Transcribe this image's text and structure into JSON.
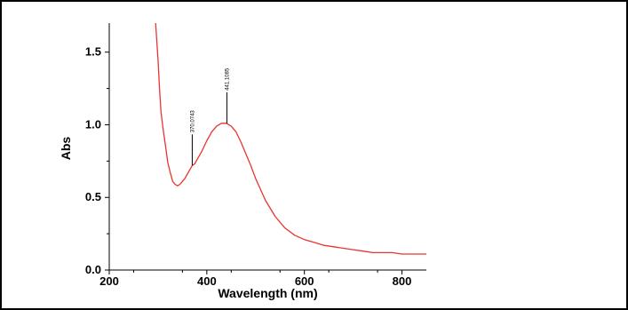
{
  "chart_data": {
    "type": "line",
    "title": "",
    "xlabel": "Wavelength (nm)",
    "ylabel": "Abs",
    "xlim": [
      200,
      850
    ],
    "ylim": [
      0.0,
      1.7
    ],
    "x_ticks": [
      200,
      400,
      600,
      800
    ],
    "x_tick_labels": [
      "200",
      "400",
      "600",
      "800"
    ],
    "y_ticks": [
      0.0,
      0.5,
      1.0,
      1.5
    ],
    "y_tick_labels": [
      "0.0",
      "0.5",
      "1.0",
      "1.5"
    ],
    "grid": false,
    "legend": "none",
    "line_color": "#e8352f",
    "series": [
      {
        "x": [
          295,
          300,
          303,
          306,
          310,
          315,
          320,
          325,
          330,
          335,
          340,
          345,
          350,
          355,
          360,
          365,
          370,
          375,
          380,
          390,
          400,
          410,
          420,
          430,
          440,
          450,
          460,
          470,
          480,
          490,
          500,
          520,
          540,
          560,
          580,
          600,
          620,
          640,
          660,
          680,
          700,
          720,
          740,
          760,
          780,
          800,
          820,
          840,
          850
        ],
        "y": [
          1.7,
          1.45,
          1.25,
          1.09,
          0.98,
          0.86,
          0.74,
          0.67,
          0.61,
          0.59,
          0.58,
          0.59,
          0.61,
          0.63,
          0.66,
          0.69,
          0.72,
          0.73,
          0.76,
          0.82,
          0.89,
          0.95,
          0.99,
          1.01,
          1.01,
          0.99,
          0.95,
          0.88,
          0.8,
          0.72,
          0.63,
          0.48,
          0.37,
          0.29,
          0.24,
          0.21,
          0.19,
          0.17,
          0.16,
          0.15,
          0.14,
          0.13,
          0.12,
          0.12,
          0.12,
          0.11,
          0.11,
          0.11,
          0.11
        ]
      }
    ],
    "annotations": [
      {
        "label": "370.0743",
        "x": 370.0743,
        "y": 0.72
      },
      {
        "label": "441.1085",
        "x": 441.1085,
        "y": 1.01
      }
    ]
  }
}
